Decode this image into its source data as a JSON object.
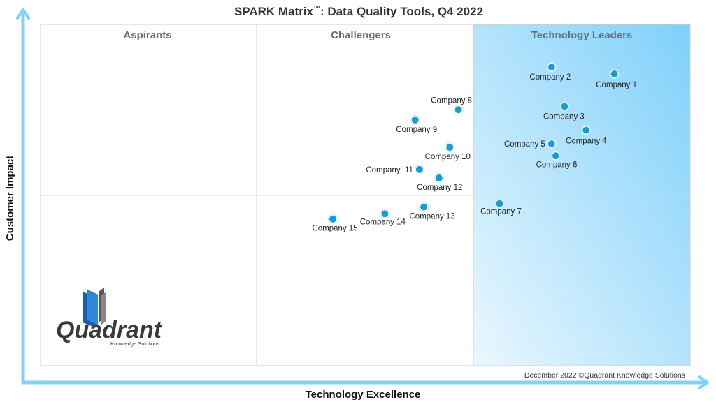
{
  "chart_data": {
    "type": "scatter",
    "title_main": "SPARK Matrix",
    "title_tm": "™",
    "title_rest": ": Data Quality Tools, Q4 2022",
    "xlabel": "Technology Excellence",
    "ylabel": "Customer Impact",
    "xlim": [
      0,
      3
    ],
    "ylim": [
      0,
      2
    ],
    "quadrants": [
      "Aspirants",
      "Challengers",
      "Technology Leaders"
    ],
    "points": [
      {
        "label": "Company 1",
        "x": 2.65,
        "y": 1.71
      },
      {
        "label": "Company 2",
        "x": 2.36,
        "y": 1.75
      },
      {
        "label": "Company 3",
        "x": 2.42,
        "y": 1.52
      },
      {
        "label": "Company 4",
        "x": 2.52,
        "y": 1.38
      },
      {
        "label": "Company 5",
        "x": 2.36,
        "y": 1.3
      },
      {
        "label": "Company 6",
        "x": 2.38,
        "y": 1.23
      },
      {
        "label": "Company 7",
        "x": 2.12,
        "y": 0.95
      },
      {
        "label": "Company 8",
        "x": 1.93,
        "y": 1.5
      },
      {
        "label": "Company 9",
        "x": 1.73,
        "y": 1.44
      },
      {
        "label": "Company 10",
        "x": 1.89,
        "y": 1.28
      },
      {
        "label": "Company  11",
        "x": 1.75,
        "y": 1.15
      },
      {
        "label": "Company 12",
        "x": 1.84,
        "y": 1.1
      },
      {
        "label": "Company 13",
        "x": 1.77,
        "y": 0.93
      },
      {
        "label": "Company 14",
        "x": 1.59,
        "y": 0.89
      },
      {
        "label": "Company 15",
        "x": 1.35,
        "y": 0.86
      }
    ],
    "point_color": "#1a9ad6",
    "leader_gradient": [
      "#7fd0fa",
      "#eaf7fe"
    ],
    "axis_color": "#84d0f7"
  },
  "footnote": "December 2022 ©Quadrant Knowledge Solutions",
  "logo": {
    "name": "Quadrant",
    "tagline": "Knowledge Solutions"
  }
}
